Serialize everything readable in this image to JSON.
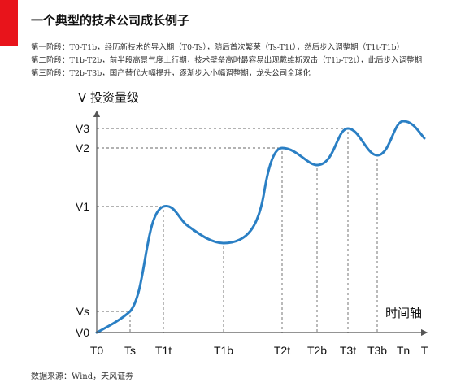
{
  "header": {
    "title": "一个典型的技术公司成长例子"
  },
  "description": [
    "第一阶段：T0-T1b，经历新技术的导入期（T0-Ts），随后首次繁荣（Ts-T1t），然后步入调整期（T1t-T1b）",
    "第二阶段：T1b-T2b，前半段高景气度上行期，技术壁垒高时最容易出现戴维斯双击（T1b-T2t），此后步入调整期",
    "第三阶段：T2b-T3b，国产替代大幅提升，逐渐步入小幅调整期，龙头公司全球化"
  ],
  "footer": {
    "source": "数据来源：Wind，天风证券"
  },
  "colors": {
    "accent": "#e8141b",
    "curve": "#2a7fc4",
    "guide": "#666666",
    "axis": "#555555"
  },
  "chart_data": {
    "type": "line",
    "y_axis_title": "V 投资量级",
    "x_axis_title": "时间轴",
    "x_ticks": [
      "T0",
      "Ts",
      "T1t",
      "T1b",
      "T2t",
      "T2b",
      "T3t",
      "T3b",
      "Tn",
      "T"
    ],
    "y_ticks": [
      "V0",
      "Vs",
      "V1",
      "V2",
      "V3"
    ],
    "series": [
      {
        "values": [
          [
            "T0",
            "V0"
          ],
          [
            "Ts",
            "Vs"
          ],
          [
            "T1t",
            "V1"
          ],
          [
            "T1b",
            "trough"
          ],
          [
            "T2t",
            "V2"
          ],
          [
            "T2b",
            "trough"
          ],
          [
            "T3t",
            "V3"
          ],
          [
            "T3b",
            "trough"
          ],
          [
            "Tn",
            "peak"
          ],
          [
            "T",
            "end"
          ]
        ]
      }
    ],
    "guides": [
      {
        "x": "Ts",
        "y": "Vs"
      },
      {
        "x": "T1t",
        "y": "V1"
      },
      {
        "x": "T1b",
        "y": "trough"
      },
      {
        "x": "T2t",
        "y": "V2"
      },
      {
        "x": "T2b",
        "y": "trough"
      },
      {
        "x": "T3t",
        "y": "V3"
      },
      {
        "x": "T3b",
        "y": "trough"
      }
    ],
    "grid": false,
    "legend": "none"
  }
}
